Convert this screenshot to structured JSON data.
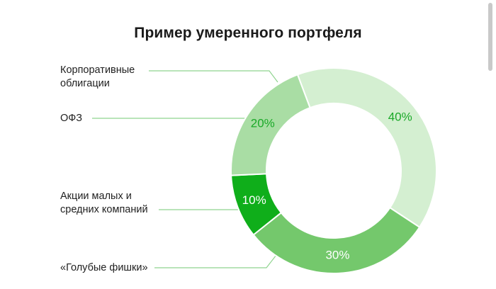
{
  "chart_data": {
    "type": "pie",
    "title": "Пример умеренного портфеля",
    "categories": [
      "Корпоративные облигации",
      "ОФЗ",
      "Акции малых и средних компаний",
      "«Голубые фишки»"
    ],
    "values": [
      40,
      20,
      10,
      30
    ],
    "value_labels": [
      "40%",
      "20%",
      "10%",
      "30%"
    ],
    "colors": [
      "#d4efd1",
      "#a9dda4",
      "#0fae1a",
      "#74c86c"
    ],
    "label_colors": [
      "#1aa928",
      "#1aa928",
      "#ffffff",
      "#ffffff"
    ],
    "donut": true
  },
  "legend": {
    "item1_line1": "Корпоративные",
    "item1_line2": "облигации",
    "item2": "ОФЗ",
    "item3_line1": "Акции малых и",
    "item3_line2": "средних компаний",
    "item4": "«Голубые фишки»"
  },
  "colors": {
    "leader_line": "#8fd48f",
    "accent": "#0fae1a"
  }
}
